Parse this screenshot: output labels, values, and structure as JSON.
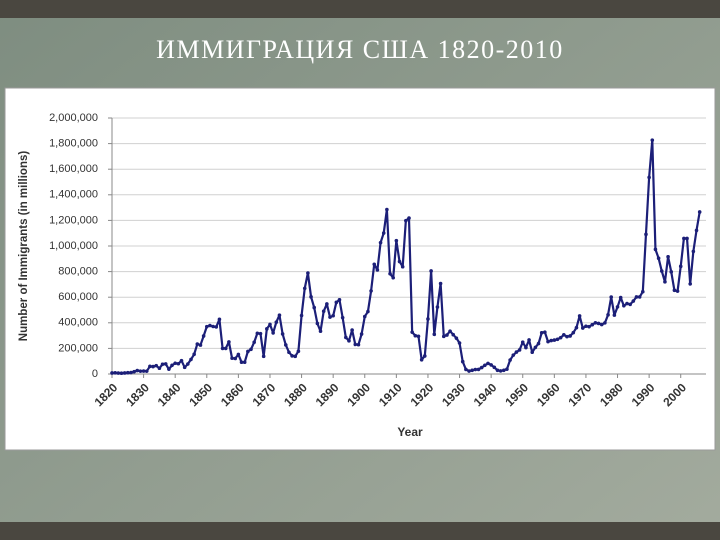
{
  "chart_data": {
    "type": "line",
    "title": "ИММИГРАЦИЯ США 1820-2010",
    "x_label": "Year",
    "y_label": "Number of Immigrants (in millions)",
    "x": [
      1820,
      1821,
      1822,
      1823,
      1824,
      1825,
      1826,
      1827,
      1828,
      1829,
      1830,
      1831,
      1832,
      1833,
      1834,
      1835,
      1836,
      1837,
      1838,
      1839,
      1840,
      1841,
      1842,
      1843,
      1844,
      1845,
      1846,
      1847,
      1848,
      1849,
      1850,
      1851,
      1852,
      1853,
      1854,
      1855,
      1856,
      1857,
      1858,
      1859,
      1860,
      1861,
      1862,
      1863,
      1864,
      1865,
      1866,
      1867,
      1868,
      1869,
      1870,
      1871,
      1872,
      1873,
      1874,
      1875,
      1876,
      1877,
      1878,
      1879,
      1880,
      1881,
      1882,
      1883,
      1884,
      1885,
      1886,
      1887,
      1888,
      1889,
      1890,
      1891,
      1892,
      1893,
      1894,
      1895,
      1896,
      1897,
      1898,
      1899,
      1900,
      1901,
      1902,
      1903,
      1904,
      1905,
      1906,
      1907,
      1908,
      1909,
      1910,
      1911,
      1912,
      1913,
      1914,
      1915,
      1916,
      1917,
      1918,
      1919,
      1920,
      1921,
      1922,
      1923,
      1924,
      1925,
      1926,
      1927,
      1928,
      1929,
      1930,
      1931,
      1932,
      1933,
      1934,
      1935,
      1936,
      1937,
      1938,
      1939,
      1940,
      1941,
      1942,
      1943,
      1944,
      1945,
      1946,
      1947,
      1948,
      1949,
      1950,
      1951,
      1952,
      1953,
      1954,
      1955,
      1956,
      1957,
      1958,
      1959,
      1960,
      1961,
      1962,
      1963,
      1964,
      1965,
      1966,
      1967,
      1968,
      1969,
      1970,
      1971,
      1972,
      1973,
      1974,
      1975,
      1976,
      1977,
      1978,
      1979,
      1980,
      1981,
      1982,
      1983,
      1984,
      1985,
      1986,
      1987,
      1988,
      1989,
      1990,
      1991,
      1992,
      1993,
      1994,
      1995,
      1996,
      1997,
      1998,
      1999,
      2000,
      2001,
      2002,
      2003,
      2004,
      2005,
      2006
    ],
    "series": [
      {
        "color": "#1c1f78",
        "values": [
          8000,
          9000,
          7000,
          6000,
          8000,
          10000,
          11000,
          18000,
          27000,
          22000,
          23000,
          22000,
          60000,
          58000,
          65000,
          45000,
          76000,
          79000,
          38000,
          68000,
          84000,
          80000,
          104000,
          52000,
          78000,
          114000,
          154000,
          234000,
          226000,
          297000,
          370000,
          379000,
          371000,
          368000,
          427000,
          200000,
          200000,
          251000,
          123000,
          121000,
          153000,
          92000,
          92000,
          176000,
          193000,
          248000,
          318000,
          315000,
          138000,
          353000,
          387000,
          321000,
          405000,
          460000,
          313000,
          227000,
          170000,
          142000,
          138000,
          178000,
          457000,
          669000,
          789000,
          603000,
          519000,
          395000,
          334000,
          490000,
          547000,
          444000,
          455000,
          560000,
          580000,
          440000,
          286000,
          259000,
          343000,
          231000,
          229000,
          312000,
          449000,
          488000,
          649000,
          857000,
          813000,
          1026000,
          1101000,
          1285000,
          783000,
          752000,
          1042000,
          879000,
          838000,
          1198000,
          1218000,
          327000,
          299000,
          295000,
          111000,
          141000,
          430000,
          805000,
          310000,
          523000,
          707000,
          294000,
          304000,
          335000,
          307000,
          280000,
          242000,
          97000,
          36000,
          23000,
          29000,
          35000,
          36000,
          50000,
          68000,
          83000,
          71000,
          52000,
          29000,
          24000,
          29000,
          38000,
          109000,
          147000,
          171000,
          188000,
          249000,
          206000,
          266000,
          170000,
          208000,
          238000,
          322000,
          327000,
          253000,
          261000,
          265000,
          271000,
          284000,
          306000,
          292000,
          297000,
          323000,
          362000,
          454000,
          359000,
          373000,
          370000,
          385000,
          400000,
          395000,
          386000,
          399000,
          462000,
          601000,
          460000,
          524000,
          597000,
          533000,
          550000,
          544000,
          570000,
          602000,
          602000,
          643000,
          1091000,
          1536000,
          1827000,
          974000,
          904000,
          804000,
          720000,
          916000,
          798000,
          654000,
          647000,
          841000,
          1059000,
          1059000,
          704000,
          958000,
          1122000,
          1266000
        ]
      }
    ],
    "xlim": [
      1820,
      2008
    ],
    "xticks": [
      1820,
      1830,
      1840,
      1850,
      1860,
      1870,
      1880,
      1890,
      1900,
      1910,
      1920,
      1930,
      1940,
      1950,
      1960,
      1970,
      1980,
      1990,
      2000
    ],
    "ylim": [
      0,
      2000000
    ],
    "yticks": [
      0,
      {
        "value": 200000,
        "label": "200,000"
      },
      {
        "value": 400000,
        "label": "400,000"
      },
      {
        "value": 600000,
        "label": "600,000"
      },
      {
        "value": 800000,
        "label": "800,000"
      },
      {
        "value": 1000000,
        "label": "1,000,000"
      },
      {
        "value": 1200000,
        "label": "1,200,000"
      },
      {
        "value": 1400000,
        "label": "1,400,000"
      },
      {
        "value": 1600000,
        "label": "1,600,000"
      },
      {
        "value": 1800000,
        "label": "1,800,000"
      },
      {
        "value": 2000000,
        "label": "2,000,000"
      }
    ],
    "grid": true
  }
}
